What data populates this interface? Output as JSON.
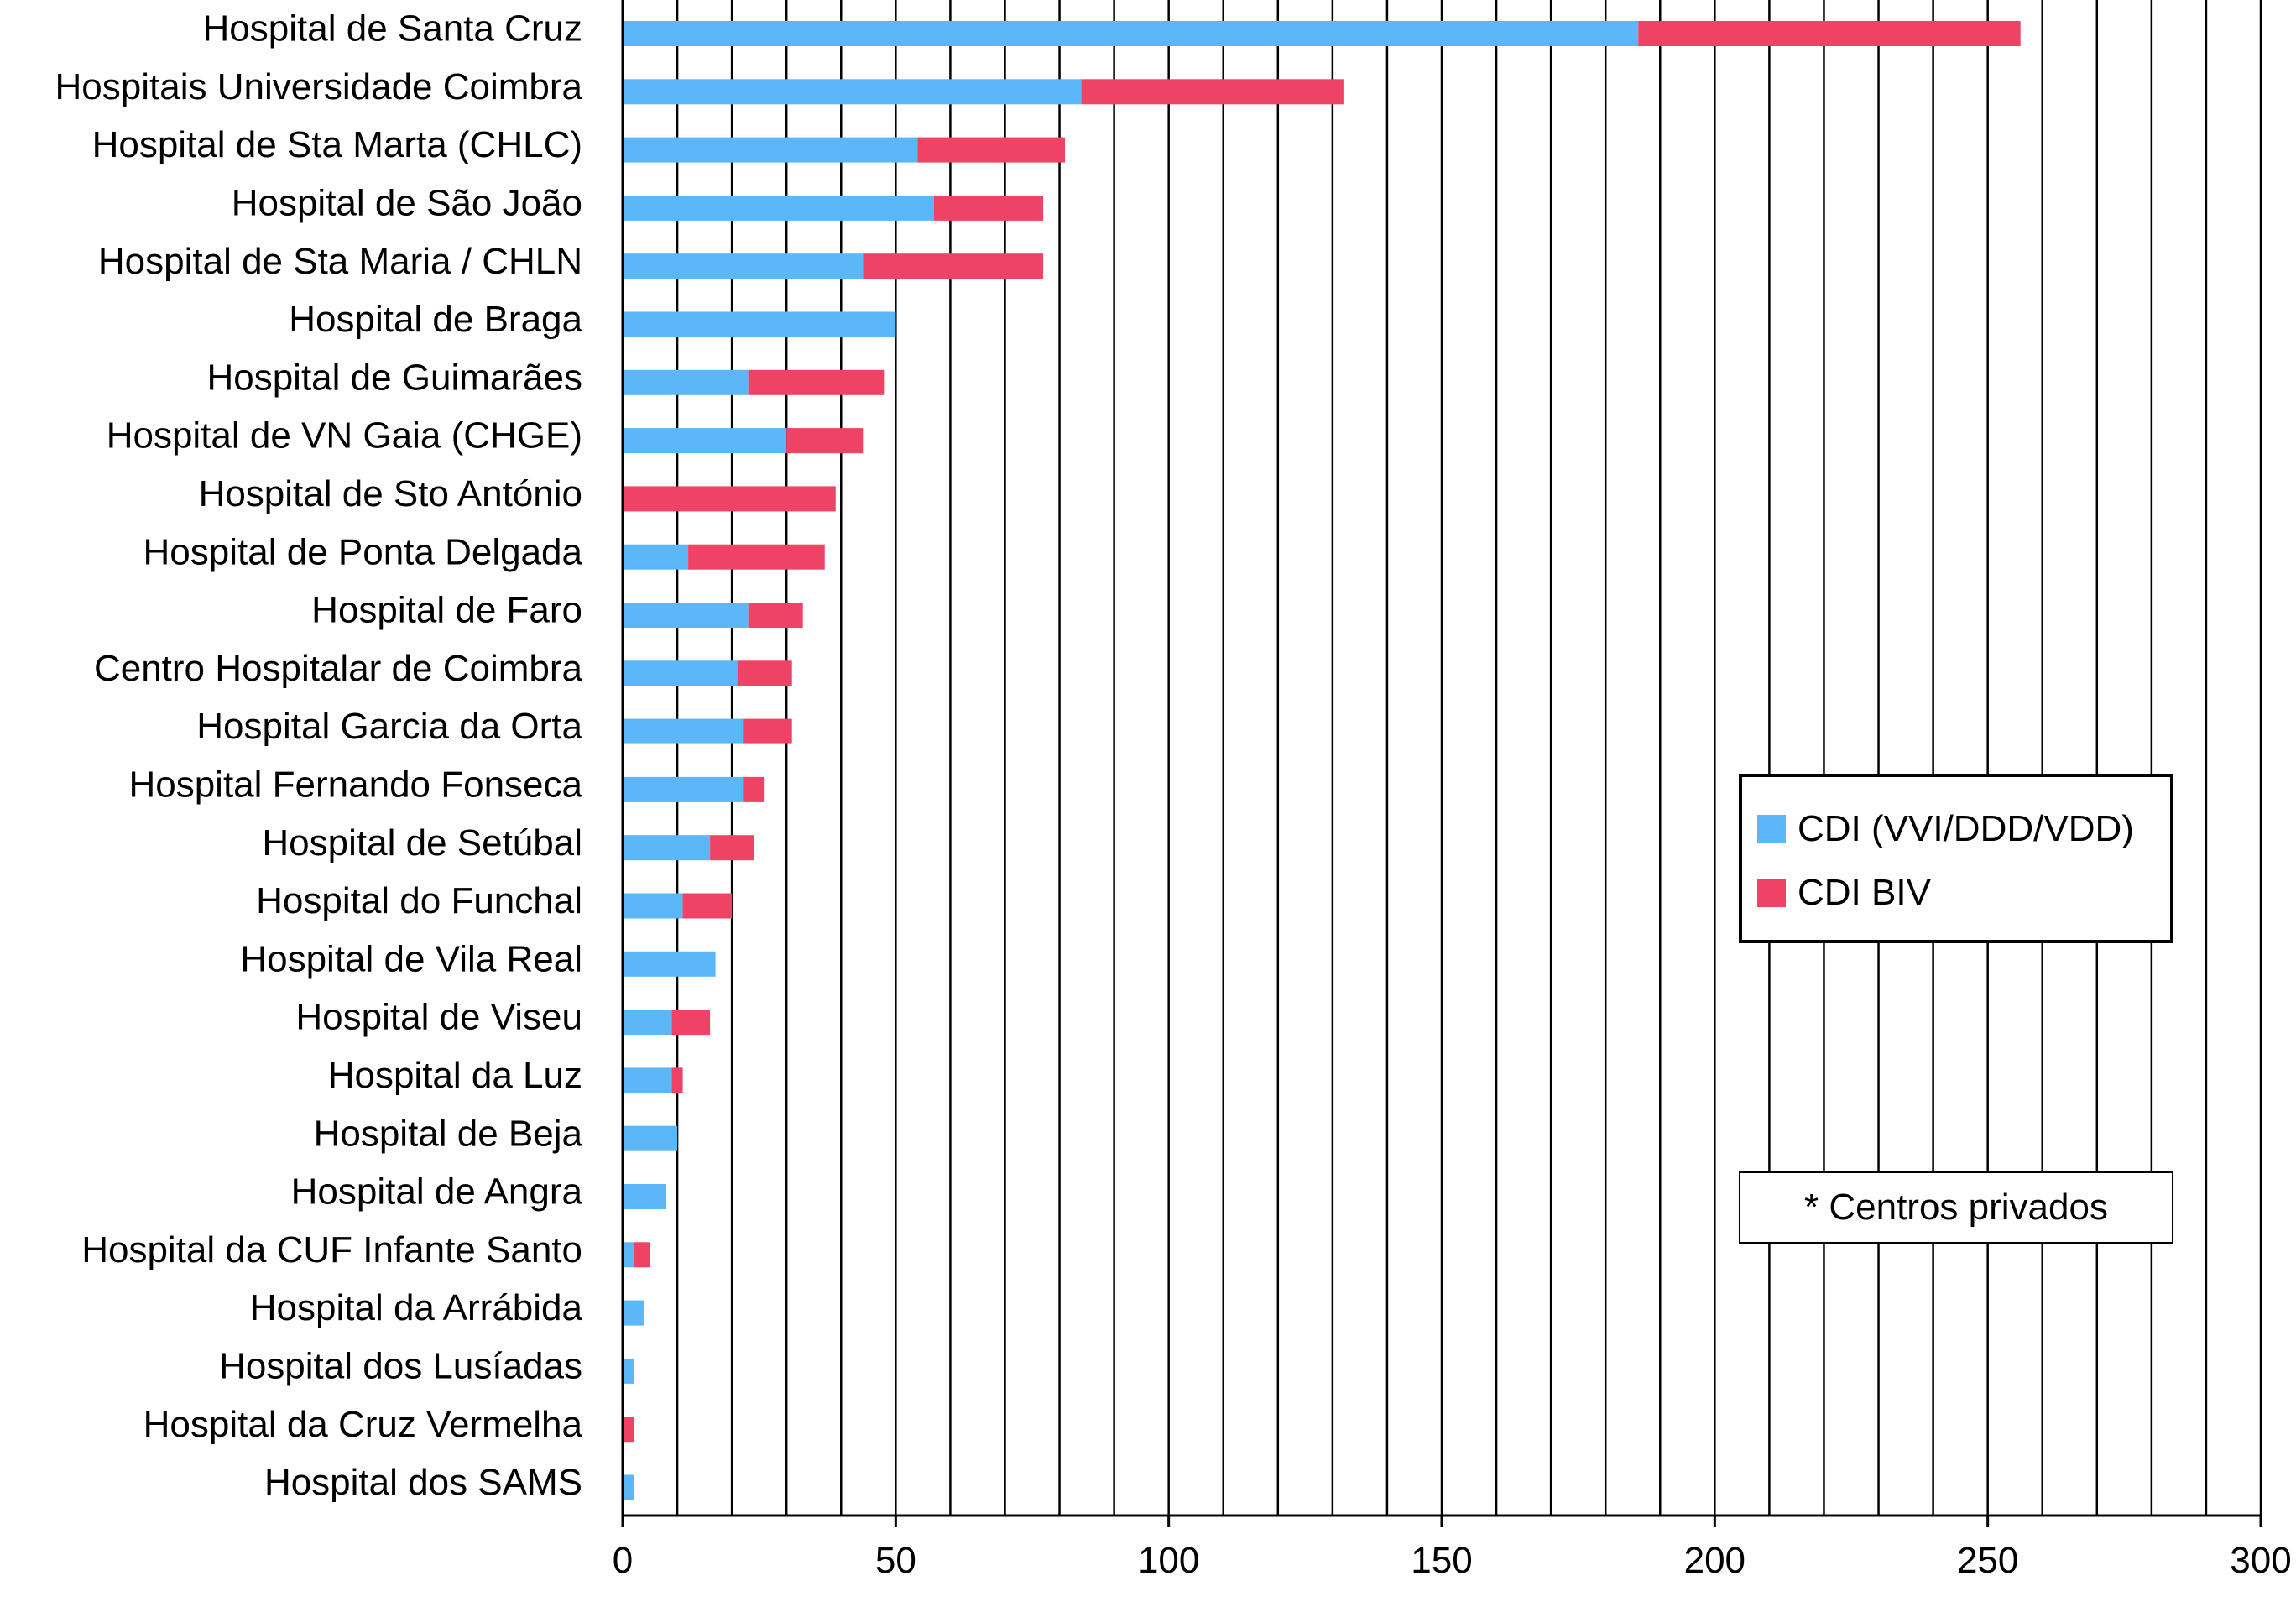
{
  "chart_data": {
    "type": "bar",
    "orientation": "horizontal",
    "stacked": true,
    "title": "",
    "xlabel": "",
    "ylabel": "",
    "xlim": [
      0,
      300
    ],
    "x_ticks": [
      0,
      50,
      100,
      150,
      200,
      250,
      300
    ],
    "grid": "vertical lines every 10",
    "legend_position": "right",
    "categories": [
      "Hospital de Santa Cruz",
      "Hospitais Universidade Coimbra",
      "Hospital de Sta Marta (CHLC)",
      "Hospital de São João",
      "Hospital de Sta Maria / CHLN",
      "Hospital de Braga",
      "Hospital de Guimarães",
      "Hospital de VN Gaia (CHGE)",
      "Hospital de Sto António",
      "Hospital de Ponta Delgada",
      "Hospital de Faro",
      "Centro Hospitalar de Coimbra",
      "Hospital Garcia da Orta",
      "Hospital Fernando Fonseca",
      "Hospital de Setúbal",
      "Hospital do Funchal",
      "Hospital de Vila Real",
      "Hospital de Viseu",
      "Hospital da Luz",
      "Hospital de Beja",
      "Hospital de Angra",
      "Hospital da CUF Infante Santo",
      "Hospital da Arrábida",
      "Hospital dos Lusíadas",
      "Hospital da Cruz Vermelha",
      "Hospital dos SAMS"
    ],
    "series": [
      {
        "name": "CDI (VVI/DDD/VDD)",
        "color": "#5BB7F7",
        "values": [
          186,
          84,
          54,
          57,
          44,
          50,
          23,
          30,
          0,
          12,
          23,
          21,
          22,
          22,
          16,
          11,
          17,
          9,
          9,
          10,
          8,
          2,
          4,
          2,
          0,
          2
        ]
      },
      {
        "name": "CDI BIV",
        "color": "#EF4365",
        "values": [
          70,
          48,
          27,
          20,
          33,
          0,
          25,
          14,
          39,
          25,
          10,
          10,
          9,
          4,
          8,
          9,
          0,
          7,
          2,
          0,
          0,
          3,
          0,
          0,
          2,
          0
        ]
      }
    ]
  },
  "note": "* Centros privados"
}
